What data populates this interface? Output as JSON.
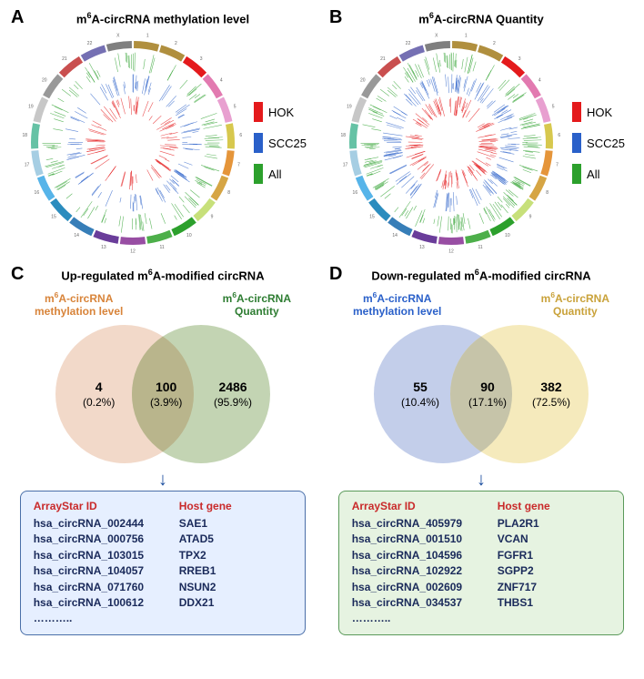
{
  "panelA": {
    "label": "A",
    "title": "m⁶A-circRNA methylation level",
    "legend": [
      {
        "label": "HOK",
        "color": "#e41a1c"
      },
      {
        "label": "SCC25",
        "color": "#2a60c9"
      },
      {
        "label": "All",
        "color": "#2ca02c"
      }
    ],
    "circos": {
      "chrom_colors": [
        "#b08f3e",
        "#b08f3e",
        "#e41a1c",
        "#e27ab0",
        "#e8a0d0",
        "#d7c84e",
        "#e5953a",
        "#d6a544",
        "#c7e07a",
        "#2ca02c",
        "#4daf4a",
        "#984ea3",
        "#6a3d9a",
        "#377eb8",
        "#2b8cbe",
        "#56b4e9",
        "#a6cee3",
        "#66c2a5",
        "#c7c7c7",
        "#999999",
        "#c94f4f",
        "#7570b3",
        "#7f7f7f"
      ],
      "track_colors": [
        "#2ca02c",
        "#2a60c9",
        "#e41a1c"
      ],
      "bg": "#ffffff",
      "density": 0.45
    }
  },
  "panelB": {
    "label": "B",
    "title": "m⁶A-circRNA Quantity",
    "legend": [
      {
        "label": "HOK",
        "color": "#e41a1c"
      },
      {
        "label": "SCC25",
        "color": "#2a60c9"
      },
      {
        "label": "All",
        "color": "#2ca02c"
      }
    ],
    "circos": {
      "chrom_colors": [
        "#b08f3e",
        "#b08f3e",
        "#e41a1c",
        "#e27ab0",
        "#e8a0d0",
        "#d7c84e",
        "#e5953a",
        "#d6a544",
        "#c7e07a",
        "#2ca02c",
        "#4daf4a",
        "#984ea3",
        "#6a3d9a",
        "#377eb8",
        "#2b8cbe",
        "#56b4e9",
        "#a6cee3",
        "#66c2a5",
        "#c7c7c7",
        "#999999",
        "#c94f4f",
        "#7570b3",
        "#7f7f7f"
      ],
      "track_colors": [
        "#2ca02c",
        "#2a60c9",
        "#e41a1c"
      ],
      "bg": "#ffffff",
      "density": 0.7
    }
  },
  "panelC": {
    "label": "C",
    "title": "Up-regulated m⁶A-modified circRNA",
    "venn": {
      "left_label": "m⁶A-circRNA\nmethylation level",
      "left_label_color": "#d8843a",
      "right_label": "m⁶A-circRNA\nQuantity",
      "right_label_color": "#2e7d32",
      "left_fill": "#f0d2c0",
      "right_fill": "#b9cda6",
      "inter_fill": "#b8b38a",
      "left_count": "4",
      "left_pct": "(0.2%)",
      "inter_count": "100",
      "inter_pct": "(3.9%)",
      "right_count": "2486",
      "right_pct": "(95.9%)"
    },
    "box": {
      "bg": "#e6efff",
      "border": "#4a6fa8",
      "header_color": "#c92a2a",
      "header": [
        "ArrayStar ID",
        "Host gene"
      ],
      "rows": [
        [
          "hsa_circRNA_002444",
          "SAE1"
        ],
        [
          "hsa_circRNA_000756",
          "ATAD5"
        ],
        [
          "hsa_circRNA_103015",
          "TPX2"
        ],
        [
          "hsa_circRNA_104057",
          "RREB1"
        ],
        [
          "hsa_circRNA_071760",
          "NSUN2"
        ],
        [
          "hsa_circRNA_100612",
          "DDX21"
        ]
      ],
      "dots": "……….."
    }
  },
  "panelD": {
    "label": "D",
    "title": "Down-regulated m⁶A-modified circRNA",
    "venn": {
      "left_label": "m⁶A-circRNA\nmethylation level",
      "left_label_color": "#2a60c9",
      "right_label": "m⁶A-circRNA\nQuantity",
      "right_label_color": "#c9a23a",
      "left_fill": "#b8c6e6",
      "right_fill": "#f3e6b0",
      "inter_fill": "#c4c2a8",
      "left_count": "55",
      "left_pct": "(10.4%)",
      "inter_count": "90",
      "inter_pct": "(17.1%)",
      "right_count": "382",
      "right_pct": "(72.5%)"
    },
    "box": {
      "bg": "#e6f3e1",
      "border": "#5a9a5a",
      "header_color": "#c92a2a",
      "header": [
        "ArrayStar ID",
        "Host gene"
      ],
      "rows": [
        [
          "hsa_circRNA_405979",
          "PLA2R1"
        ],
        [
          "hsa_circRNA_001510",
          "VCAN"
        ],
        [
          "hsa_circRNA_104596",
          "FGFR1"
        ],
        [
          "hsa_circRNA_102922",
          "SGPP2"
        ],
        [
          "hsa_circRNA_002609",
          "ZNF717"
        ],
        [
          "hsa_circRNA_034537",
          "THBS1"
        ]
      ],
      "dots": "……….."
    }
  },
  "arrow": "↓"
}
